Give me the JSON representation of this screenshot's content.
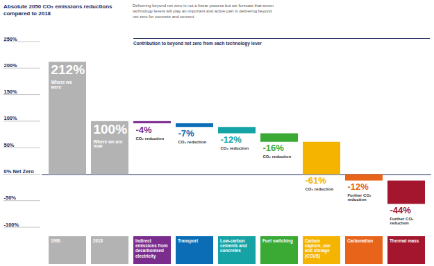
{
  "chart_data": {
    "type": "waterfall",
    "title": "Absolute 2050 CO₂ emissions reductions compared to 2018",
    "subtitle": "Delivering beyond net zero is not a linear process but we forecast that seven technology levers will play an important and active part in delivering beyond net zero for concrete and cement.",
    "header": "Contribution to beyond net zero from each technology lever",
    "categories": [
      "1990",
      "2018",
      "Indirect emissions from decarbonised electricity",
      "Transport",
      "Low-carbon cements and concretes",
      "Fuel switching",
      "Carbon capture, use and storage (CCUS)",
      "Carbonation",
      "Thermal mass"
    ],
    "values": [
      212,
      100,
      -4,
      -7,
      -12,
      -16,
      -61,
      -12,
      -44
    ],
    "value_labels": [
      "212%",
      "100%",
      "-4%",
      "-7%",
      "-12%",
      "-16%",
      "-61%",
      "-12%",
      "-44%"
    ],
    "bar_notes": [
      "Where we were",
      "Where we are now",
      "CO₂ reduction",
      "CO₂ reduction",
      "CO₂ reduction",
      "CO₂ reduction",
      "CO₂ reduction",
      "Further CO₂ reduction",
      "Further CO₂ reduction"
    ],
    "colors": [
      "#b3b3b3",
      "#b3b3b3",
      "#7b2d8e",
      "#0a6db5",
      "#16a3a6",
      "#3aaa35",
      "#f5b400",
      "#e8641b",
      "#a3162e"
    ],
    "ylim": [
      -100,
      250
    ],
    "yticks": [
      {
        "value": 250,
        "label": "250%"
      },
      {
        "value": 200,
        "label": "200%"
      },
      {
        "value": 150,
        "label": "150%"
      },
      {
        "value": 100,
        "label": "100%"
      },
      {
        "value": 50,
        "label": "50%"
      },
      {
        "value": 0,
        "label": "0% Net Zero"
      },
      {
        "value": -50,
        "label": "-50%"
      },
      {
        "value": -100,
        "label": "-100%"
      }
    ],
    "grid": true,
    "data_labels": true
  }
}
